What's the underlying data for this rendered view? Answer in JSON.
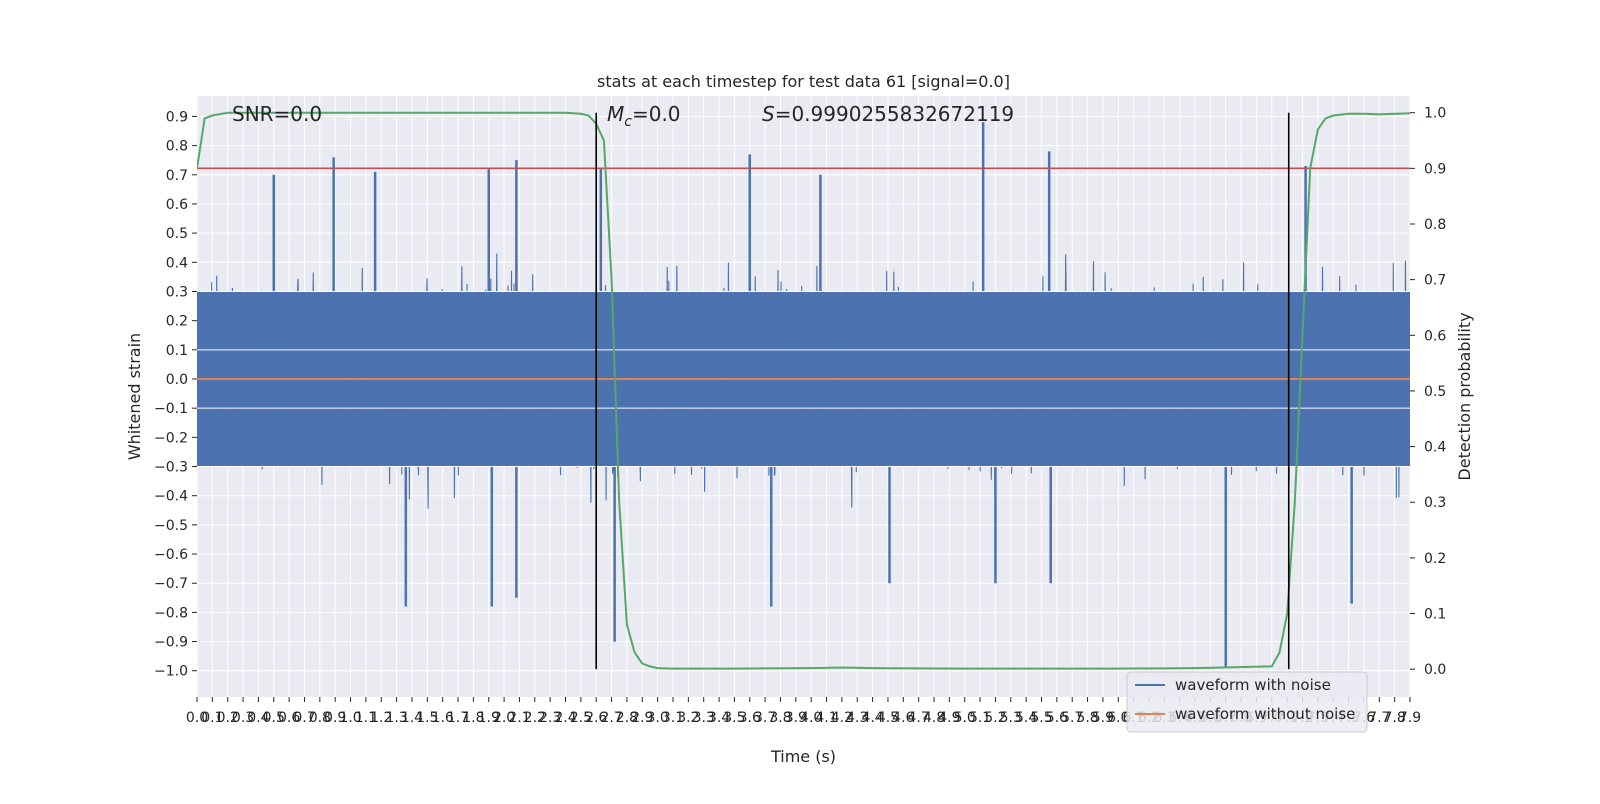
{
  "chart_data": {
    "type": "line",
    "title": "stats at each timestep for test data 61 [signal=0.0]",
    "xlabel": "Time (s)",
    "ylabel": "Whitened strain",
    "y2label": "Detection probability",
    "xlim": [
      0.0,
      7.9
    ],
    "ylim": [
      -1.09,
      0.97
    ],
    "y2lim": [
      -0.05,
      1.03
    ],
    "x_ticks": [
      "0.0",
      "0.1",
      "0.2",
      "0.3",
      "0.4",
      "0.5",
      "0.6",
      "0.7",
      "0.8",
      "0.9",
      "1.0",
      "1.1",
      "1.2",
      "1.3",
      "1.4",
      "1.5",
      "1.6",
      "1.7",
      "1.8",
      "1.9",
      "2.0",
      "2.1",
      "2.2",
      "2.3",
      "2.4",
      "2.5",
      "2.6",
      "2.7",
      "2.8",
      "2.9",
      "3.0",
      "3.1",
      "3.2",
      "3.3",
      "3.4",
      "3.5",
      "3.6",
      "3.7",
      "3.8",
      "3.9",
      "4.0",
      "4.1",
      "4.2",
      "4.3",
      "4.4",
      "4.5",
      "4.6",
      "4.7",
      "4.8",
      "4.9",
      "5.0",
      "5.1",
      "5.2",
      "5.3",
      "5.4",
      "5.5",
      "5.6",
      "5.7",
      "5.8",
      "5.9",
      "6.0",
      "6.1",
      "6.2",
      "6.3",
      "6.4",
      "6.5",
      "6.6",
      "6.7",
      "6.8",
      "6.9",
      "7.0",
      "7.1",
      "7.2",
      "7.3",
      "7.4",
      "7.5",
      "7.6",
      "7.7",
      "7.8",
      "7.9"
    ],
    "y_ticks": [
      "0.9",
      "0.8",
      "0.7",
      "0.6",
      "0.5",
      "0.4",
      "0.3",
      "0.2",
      "0.1",
      "0.0",
      "−0.1",
      "−0.2",
      "−0.3",
      "−0.4",
      "−0.5",
      "−0.6",
      "−0.7",
      "−0.8",
      "−0.9",
      "−1.0"
    ],
    "y_tick_values": [
      0.9,
      0.8,
      0.7,
      0.6,
      0.5,
      0.4,
      0.3,
      0.2,
      0.1,
      0.0,
      -0.1,
      -0.2,
      -0.3,
      -0.4,
      -0.5,
      -0.6,
      -0.7,
      -0.8,
      -0.9,
      -1.0
    ],
    "y2_ticks": [
      "1.0",
      "0.9",
      "0.8",
      "0.7",
      "0.6",
      "0.5",
      "0.4",
      "0.3",
      "0.2",
      "0.1",
      "0.0"
    ],
    "y2_tick_values": [
      1.0,
      0.9,
      0.8,
      0.7,
      0.6,
      0.5,
      0.4,
      0.3,
      0.2,
      0.1,
      0.0
    ],
    "grid": true,
    "legend_position": "lower-right",
    "annotations": {
      "snr": "SNR=0.0",
      "mc_symbol": "M",
      "mc_sub": "c",
      "mc_value": "=0.0",
      "s_symbol": "S",
      "s_value": "=0.9990255832672119"
    },
    "series": [
      {
        "name": "waveform with noise",
        "color": "#4c72b0",
        "style": "dense-noise",
        "typical_band": [
          -0.3,
          0.3
        ],
        "notable_peaks": [
          {
            "x": 0.89,
            "y": 0.76
          },
          {
            "x": 1.16,
            "y": 0.71
          },
          {
            "x": 0.5,
            "y": 0.7
          },
          {
            "x": 1.9,
            "y": 0.72
          },
          {
            "x": 2.08,
            "y": 0.75
          },
          {
            "x": 2.63,
            "y": 0.72
          },
          {
            "x": 3.6,
            "y": 0.77
          },
          {
            "x": 4.06,
            "y": 0.7
          },
          {
            "x": 5.12,
            "y": 0.88
          },
          {
            "x": 5.55,
            "y": 0.78
          },
          {
            "x": 7.22,
            "y": 0.73
          }
        ],
        "notable_troughs": [
          {
            "x": 1.36,
            "y": -0.78
          },
          {
            "x": 1.92,
            "y": -0.78
          },
          {
            "x": 2.08,
            "y": -0.75
          },
          {
            "x": 2.72,
            "y": -0.9
          },
          {
            "x": 3.74,
            "y": -0.78
          },
          {
            "x": 4.51,
            "y": -0.7
          },
          {
            "x": 5.2,
            "y": -0.7
          },
          {
            "x": 5.56,
            "y": -0.7
          },
          {
            "x": 6.7,
            "y": -0.99
          },
          {
            "x": 7.52,
            "y": -0.77
          }
        ]
      },
      {
        "name": "waveform without noise",
        "color": "#dd8452",
        "x": [
          0.0,
          7.9
        ],
        "values": [
          0.0,
          0.0
        ]
      },
      {
        "name": "detection probability",
        "color": "#55a868",
        "axis": "right",
        "x": [
          0.0,
          0.05,
          0.1,
          0.2,
          0.5,
          1.0,
          1.5,
          2.0,
          2.4,
          2.5,
          2.55,
          2.6,
          2.65,
          2.7,
          2.75,
          2.8,
          2.85,
          2.9,
          2.95,
          3.0,
          3.1,
          3.5,
          4.0,
          4.2,
          4.4,
          5.0,
          5.5,
          6.0,
          6.5,
          7.0,
          7.05,
          7.1,
          7.15,
          7.2,
          7.25,
          7.3,
          7.35,
          7.4,
          7.5,
          7.6,
          7.7,
          7.8,
          7.9
        ],
        "values": [
          0.9,
          0.99,
          0.995,
          1.0,
          1.0,
          1.0,
          1.0,
          1.0,
          1.0,
          0.998,
          0.995,
          0.98,
          0.95,
          0.7,
          0.3,
          0.08,
          0.03,
          0.01,
          0.005,
          0.002,
          0.001,
          0.001,
          0.002,
          0.003,
          0.002,
          0.001,
          0.001,
          0.001,
          0.002,
          0.005,
          0.03,
          0.1,
          0.3,
          0.6,
          0.9,
          0.97,
          0.99,
          0.995,
          0.998,
          0.998,
          0.997,
          0.998,
          0.999
        ]
      },
      {
        "name": "threshold",
        "color": "#c44e52",
        "axis": "right",
        "x": [
          0.0,
          7.9
        ],
        "values": [
          0.9,
          0.9
        ]
      }
    ],
    "vertical_markers": [
      {
        "x": 2.6,
        "color": "#000000"
      },
      {
        "x": 7.11,
        "color": "#000000"
      }
    ]
  },
  "legend": {
    "items": [
      {
        "label": "waveform with noise",
        "color": "#4c72b0"
      },
      {
        "label": "waveform without noise",
        "color": "#dd8452"
      }
    ]
  },
  "colors": {
    "axes_bg": "#eaeaf2",
    "grid": "#ffffff",
    "text": "#262626"
  }
}
